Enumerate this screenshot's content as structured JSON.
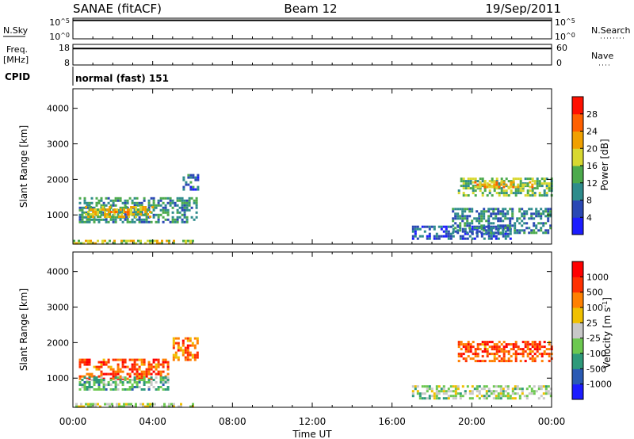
{
  "header": {
    "station": "SANAE (fitACF)",
    "beam": "Beam 12",
    "date": "19/Sep/2011"
  },
  "chart_data": [
    {
      "type": "line",
      "panel": "nsky",
      "ylabel": "N.Sky",
      "y_ticks_left": [
        "10^5",
        "10^0"
      ],
      "y_ticks_right": [
        "10^5",
        "10^0"
      ],
      "right_label": "N.Search",
      "right_legend_style": "dotted",
      "level": 0.9
    },
    {
      "type": "line",
      "panel": "freq",
      "ylabel_lines": [
        "Freq.",
        "[MHz]"
      ],
      "y_ticks_left": [
        "18",
        "8"
      ],
      "y_ticks_right": [
        "60",
        "0"
      ],
      "right_label": "Nave",
      "right_legend_style": "dotted",
      "level": 0.8
    },
    {
      "type": "table",
      "panel": "cpid",
      "label": "CPID",
      "text": "normal (fast) 151"
    },
    {
      "type": "heatmap",
      "panel": "power",
      "ylabel": "Slant Range [km]",
      "y_ticks": [
        1000,
        2000,
        3000,
        4000
      ],
      "ylim": [
        180,
        4550
      ],
      "xlim_hours": [
        0,
        24
      ],
      "colorbar": {
        "label": "Power [dB]",
        "ticks": [
          "4",
          "8",
          "12",
          "16",
          "20",
          "24",
          "28"
        ],
        "colors": [
          "#1c1cff",
          "#2a48b4",
          "#2e8c8c",
          "#4caa4c",
          "#d8d830",
          "#f0a000",
          "#ff6000",
          "#ff1000"
        ]
      },
      "patches": [
        {
          "t": [
            0.3,
            6.2
          ],
          "r": [
            800,
            1500
          ],
          "v": 0.35
        },
        {
          "t": [
            0.6,
            4.0
          ],
          "r": [
            950,
            1250
          ],
          "v": 0.6
        },
        {
          "t": [
            1.5,
            2.8
          ],
          "r": [
            1000,
            1180
          ],
          "v": 0.75
        },
        {
          "t": [
            5.5,
            6.3
          ],
          "r": [
            1700,
            2150
          ],
          "v": 0.25
        },
        {
          "t": [
            17.0,
            22.0
          ],
          "r": [
            350,
            700
          ],
          "v": 0.2
        },
        {
          "t": [
            19.3,
            24.0
          ],
          "r": [
            1550,
            2050
          ],
          "v": 0.45
        },
        {
          "t": [
            20.0,
            23.0
          ],
          "r": [
            1750,
            1950
          ],
          "v": 0.65
        },
        {
          "t": [
            19.0,
            24.0
          ],
          "r": [
            500,
            1200
          ],
          "v": 0.3
        },
        {
          "t": [
            0.0,
            6.0
          ],
          "r": [
            200,
            300
          ],
          "v": 0.55
        }
      ]
    },
    {
      "type": "heatmap",
      "panel": "velocity",
      "ylabel": "Slant Range [km]",
      "y_ticks": [
        1000,
        2000,
        3000,
        4000
      ],
      "ylim": [
        180,
        4550
      ],
      "xlim_hours": [
        0,
        24
      ],
      "x_ticks": [
        "00:00",
        "04:00",
        "08:00",
        "12:00",
        "16:00",
        "20:00",
        "00:00"
      ],
      "xlabel": "Time UT",
      "colorbar": {
        "label": "Velocity [m s^-1]",
        "ticks": [
          "1000",
          "500",
          "100",
          "25",
          "-25",
          "-100",
          "-500",
          "-1000"
        ],
        "colors": [
          "#1c1cff",
          "#2a5ab4",
          "#2e9a7a",
          "#6cc850",
          "#c8c8c8",
          "#f0c000",
          "#ff8000",
          "#ff3000",
          "#ff0000"
        ]
      },
      "patches": [
        {
          "t": [
            0.3,
            4.8
          ],
          "r": [
            1000,
            1550
          ],
          "v": 0.8
        },
        {
          "t": [
            0.3,
            4.8
          ],
          "r": [
            700,
            1050
          ],
          "v": 0.35
        },
        {
          "t": [
            5.0,
            6.3
          ],
          "r": [
            1500,
            2150
          ],
          "v": 0.75
        },
        {
          "t": [
            19.3,
            24.0
          ],
          "r": [
            1500,
            2050
          ],
          "v": 0.8
        },
        {
          "t": [
            17.0,
            24.0
          ],
          "r": [
            400,
            800
          ],
          "v": 0.45
        },
        {
          "t": [
            0.0,
            6.0
          ],
          "r": [
            200,
            300
          ],
          "v": 0.5
        }
      ]
    }
  ]
}
